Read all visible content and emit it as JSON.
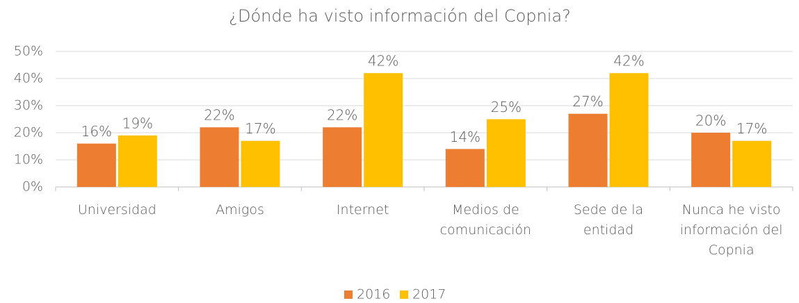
{
  "chart_data": {
    "type": "bar",
    "title": "¿Dónde ha visto información del Copnia?",
    "categories": [
      "Universidad",
      "Amigos",
      "Internet",
      "Medios de comunicación",
      "Sede de la entidad",
      "Nunca he visto información del Copnia"
    ],
    "series": [
      {
        "name": "2016",
        "color": "#ed7d31",
        "values": [
          16,
          22,
          22,
          14,
          27,
          20
        ],
        "value_labels": [
          "16%",
          "22%",
          "22%",
          "14%",
          "27%",
          "20%"
        ]
      },
      {
        "name": "2017",
        "color": "#ffc000",
        "values": [
          19,
          17,
          42,
          25,
          42,
          17
        ],
        "value_labels": [
          "19%",
          "17%",
          "42%",
          "25%",
          "42%",
          "17%"
        ]
      }
    ],
    "ylim": [
      0,
      50
    ],
    "yticks": [
      {
        "value": 0,
        "label": "0%"
      },
      {
        "value": 10,
        "label": "10%"
      },
      {
        "value": 20,
        "label": "20%"
      },
      {
        "value": 30,
        "label": "30%"
      },
      {
        "value": 40,
        "label": "40%"
      },
      {
        "value": 50,
        "label": "50%"
      }
    ],
    "grid": true,
    "legend": "bottom"
  }
}
